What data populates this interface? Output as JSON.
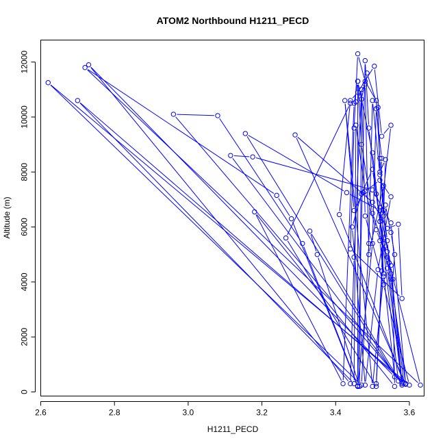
{
  "chart_data": {
    "type": "line",
    "title": "ATOM2 Northbound H1211_PECD",
    "xlabel": "H1211_PECD",
    "ylabel": "Altitude (m)",
    "xlim": [
      2.6,
      3.64
    ],
    "ylim": [
      -150,
      12800
    ],
    "xticks": [
      2.6,
      2.8,
      3.0,
      3.2,
      3.4,
      3.6
    ],
    "xtick_labels": [
      "2.6",
      "2.8",
      "3.0",
      "3.2",
      "3.4",
      "3.6"
    ],
    "yticks": [
      0,
      2000,
      4000,
      6000,
      8000,
      10000,
      12000
    ],
    "ytick_labels": [
      "0",
      "2000",
      "4000",
      "6000",
      "8000",
      "10000",
      "12000"
    ],
    "series_color": "#0000ff",
    "points": [
      [
        3.46,
        200
      ],
      [
        3.5,
        5400
      ],
      [
        3.51,
        10300
      ],
      [
        3.525,
        8500
      ],
      [
        3.52,
        6700
      ],
      [
        3.53,
        4300
      ],
      [
        3.56,
        550
      ],
      [
        2.73,
        11900
      ],
      [
        3.44,
        300
      ],
      [
        3.45,
        4900
      ],
      [
        3.47,
        11000
      ],
      [
        3.48,
        6400
      ],
      [
        3.53,
        3900
      ],
      [
        3.6,
        250
      ],
      [
        2.62,
        11250
      ],
      [
        3.47,
        250
      ],
      [
        3.49,
        5400
      ],
      [
        3.5,
        10600
      ],
      [
        3.52,
        7900
      ],
      [
        3.54,
        5500
      ],
      [
        3.55,
        4100
      ],
      [
        3.59,
        300
      ],
      [
        2.7,
        10600
      ],
      [
        3.45,
        300
      ],
      [
        3.455,
        9700
      ],
      [
        3.48,
        7300
      ],
      [
        3.51,
        5900
      ],
      [
        3.545,
        4700
      ],
      [
        3.63,
        250
      ],
      [
        2.72,
        11800
      ],
      [
        3.24,
        7150
      ],
      [
        3.28,
        6300
      ],
      [
        3.46,
        200
      ],
      [
        3.46,
        11300
      ],
      [
        3.47,
        9000
      ],
      [
        3.5,
        6500
      ],
      [
        3.54,
        4900
      ],
      [
        3.58,
        350
      ],
      [
        2.96,
        10100
      ],
      [
        3.08,
        10050
      ],
      [
        3.31,
        5400
      ],
      [
        3.46,
        220
      ],
      [
        3.48,
        12050
      ],
      [
        3.49,
        9600
      ],
      [
        3.51,
        7200
      ],
      [
        3.53,
        5200
      ],
      [
        3.57,
        400
      ],
      [
        3.155,
        9400
      ],
      [
        3.43,
        7250
      ],
      [
        3.52,
        6600
      ],
      [
        3.55,
        4600
      ],
      [
        3.58,
        300
      ],
      [
        3.115,
        8600
      ],
      [
        3.175,
        8550
      ],
      [
        3.5,
        7350
      ],
      [
        3.55,
        6150
      ],
      [
        3.59,
        280
      ],
      [
        3.29,
        9350
      ],
      [
        3.5,
        6900
      ],
      [
        3.54,
        5950
      ],
      [
        3.57,
        6100
      ],
      [
        3.58,
        3400
      ],
      [
        3.44,
        5200
      ],
      [
        3.45,
        9600
      ],
      [
        3.46,
        12300
      ],
      [
        3.48,
        11300
      ],
      [
        3.51,
        10600
      ],
      [
        3.52,
        8500
      ],
      [
        3.53,
        6600
      ],
      [
        3.535,
        6800
      ],
      [
        3.55,
        5800
      ],
      [
        3.56,
        5000
      ],
      [
        3.555,
        4100
      ],
      [
        3.56,
        200
      ],
      [
        3.18,
        6550
      ],
      [
        3.42,
        300
      ],
      [
        3.45,
        10500
      ],
      [
        3.46,
        11300
      ],
      [
        3.5,
        8700
      ],
      [
        3.52,
        6200
      ],
      [
        3.53,
        5600
      ],
      [
        3.54,
        4500
      ],
      [
        3.58,
        250
      ],
      [
        3.33,
        5850
      ],
      [
        3.35,
        5000
      ],
      [
        3.465,
        200
      ],
      [
        3.47,
        10650
      ],
      [
        3.485,
        11600
      ],
      [
        3.515,
        10350
      ],
      [
        3.52,
        8000
      ],
      [
        3.535,
        8450
      ],
      [
        3.53,
        6400
      ],
      [
        3.54,
        5100
      ],
      [
        3.55,
        4300
      ],
      [
        3.585,
        330
      ],
      [
        3.41,
        6450
      ],
      [
        3.44,
        10600
      ],
      [
        3.46,
        10900
      ],
      [
        3.505,
        11850
      ],
      [
        3.525,
        9300
      ],
      [
        3.55,
        9700
      ],
      [
        3.52,
        6200
      ],
      [
        3.52,
        5500
      ],
      [
        3.53,
        4200
      ],
      [
        3.5,
        200
      ],
      [
        3.425,
        10600
      ],
      [
        3.45,
        6600
      ],
      [
        3.475,
        7250
      ],
      [
        3.52,
        7700
      ],
      [
        3.55,
        7100
      ],
      [
        3.515,
        4450
      ],
      [
        3.48,
        250
      ],
      [
        3.445,
        6000
      ],
      [
        3.47,
        7200
      ],
      [
        3.5,
        8100
      ],
      [
        3.53,
        5400
      ],
      [
        3.51,
        200
      ],
      [
        3.265,
        5600
      ],
      [
        3.44,
        10500
      ],
      [
        3.455,
        10550
      ],
      [
        3.48,
        11200
      ],
      [
        3.49,
        5000
      ],
      [
        3.53,
        7500
      ],
      [
        3.525,
        4400
      ],
      [
        3.51,
        300
      ]
    ]
  }
}
